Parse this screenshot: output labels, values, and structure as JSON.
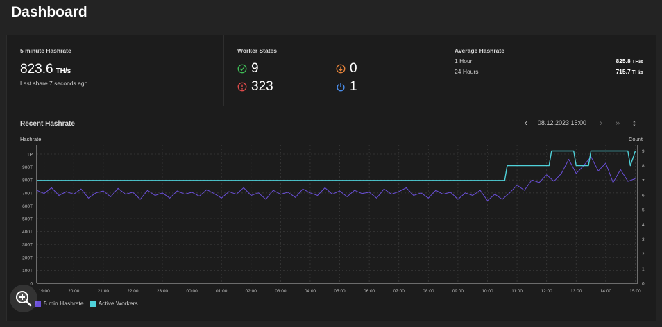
{
  "header": {
    "title": "Dashboard"
  },
  "hashrate_card": {
    "title": "5 minute Hashrate",
    "value": "823.6",
    "unit": "TH/s",
    "last_share": "Last share 7 seconds ago"
  },
  "worker_states": {
    "title": "Worker States",
    "active": {
      "icon": "check-circle-icon",
      "count": "9",
      "color": "#3fbf57"
    },
    "warning": {
      "icon": "arrow-down-circle-icon",
      "count": "0",
      "color": "#e8843a"
    },
    "error": {
      "icon": "alert-circle-icon",
      "count": "323",
      "color": "#e24b4b"
    },
    "offline": {
      "icon": "power-icon",
      "count": "1",
      "color": "#4a8ce8"
    }
  },
  "average_hashrate": {
    "title": "Average Hashrate",
    "rows": [
      {
        "label": "1 Hour",
        "value": "825.8",
        "unit": "TH/s"
      },
      {
        "label": "24 Hours",
        "value": "715.7",
        "unit": "TH/s"
      }
    ]
  },
  "recent_hashrate": {
    "title": "Recent Hashrate",
    "date": "08.12.2023 15:00",
    "controls": {
      "prev": "‹",
      "next": "›",
      "last": "»",
      "sort": "↕"
    }
  },
  "chart_data": {
    "type": "line",
    "ylabel_left": "Hashrate",
    "ylabel_right": "Count",
    "y_left_ticks": [
      "0",
      "100T",
      "200T",
      "300T",
      "400T",
      "500T",
      "600T",
      "700T",
      "800T",
      "900T",
      "1P"
    ],
    "y_right_ticks": [
      "0",
      "1",
      "2",
      "3",
      "4",
      "5",
      "6",
      "7",
      "8",
      "9"
    ],
    "x_ticks": [
      "19:00",
      "20:00",
      "21:00",
      "22:00",
      "23:00",
      "00:00",
      "01:00",
      "02:00",
      "03:00",
      "04:00",
      "05:00",
      "06:00",
      "07:00",
      "08:00",
      "09:00",
      "10:00",
      "11:00",
      "12:00",
      "13:00",
      "14:00",
      "15:00"
    ],
    "x_range": [
      "18:45",
      "15:05"
    ],
    "ylim_left": [
      0,
      1070
    ],
    "ylim_right": [
      0,
      9.4
    ],
    "grid": true,
    "legend_position": "bottom-left",
    "series": [
      {
        "name": "5 min Hashrate",
        "axis": "left",
        "color": "#6a4fd8",
        "x": [
          "18:45",
          "19:00",
          "19:15",
          "19:30",
          "19:45",
          "20:00",
          "20:15",
          "20:30",
          "20:45",
          "21:00",
          "21:15",
          "21:30",
          "21:45",
          "22:00",
          "22:15",
          "22:30",
          "22:45",
          "23:00",
          "23:15",
          "23:30",
          "23:45",
          "00:00",
          "00:15",
          "00:30",
          "00:45",
          "01:00",
          "01:15",
          "01:30",
          "01:45",
          "02:00",
          "02:15",
          "02:30",
          "02:45",
          "03:00",
          "03:15",
          "03:30",
          "03:45",
          "04:00",
          "04:15",
          "04:30",
          "04:45",
          "05:00",
          "05:15",
          "05:30",
          "05:45",
          "06:00",
          "06:15",
          "06:30",
          "06:45",
          "07:00",
          "07:15",
          "07:30",
          "07:45",
          "08:00",
          "08:15",
          "08:30",
          "08:45",
          "09:00",
          "09:15",
          "09:30",
          "09:45",
          "10:00",
          "10:15",
          "10:30",
          "10:45",
          "11:00",
          "11:15",
          "11:30",
          "11:45",
          "12:00",
          "12:15",
          "12:30",
          "12:45",
          "13:00",
          "13:15",
          "13:30",
          "13:45",
          "14:00",
          "14:15",
          "14:30",
          "14:45",
          "15:00"
        ],
        "values": [
          720,
          695,
          740,
          680,
          710,
          690,
          730,
          660,
          700,
          715,
          670,
          735,
          690,
          705,
          650,
          720,
          680,
          700,
          660,
          715,
          690,
          705,
          675,
          725,
          695,
          660,
          710,
          690,
          740,
          680,
          700,
          650,
          720,
          690,
          705,
          665,
          730,
          700,
          680,
          740,
          690,
          715,
          670,
          720,
          695,
          705,
          660,
          730,
          690,
          710,
          740,
          680,
          700,
          660,
          720,
          690,
          705,
          650,
          700,
          680,
          720,
          640,
          690,
          650,
          700,
          760,
          720,
          800,
          780,
          840,
          790,
          850,
          960,
          850,
          910,
          980,
          870,
          930,
          780,
          880,
          790,
          810
        ]
      },
      {
        "name": "Active Workers",
        "axis": "right",
        "color": "#4fd1d9",
        "x": [
          "18:45",
          "10:35",
          "10:40",
          "12:05",
          "12:10",
          "12:55",
          "13:00",
          "13:25",
          "13:30",
          "13:45",
          "13:50",
          "14:45",
          "14:50",
          "15:00"
        ],
        "values": [
          7,
          7,
          8,
          8,
          9,
          9,
          8,
          8,
          9,
          9,
          9,
          9,
          8,
          9
        ]
      }
    ]
  },
  "zoom": {
    "icon": "zoom-in-icon"
  }
}
